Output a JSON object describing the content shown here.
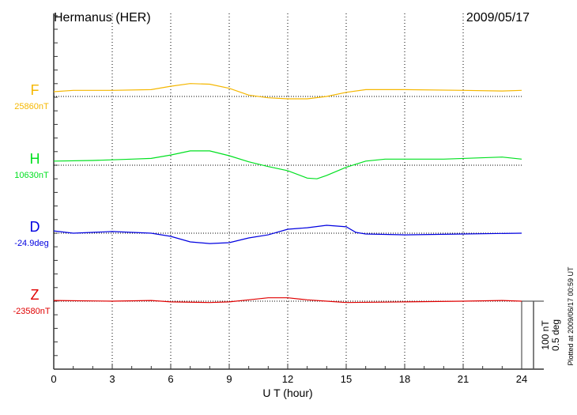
{
  "chart_data": {
    "type": "line",
    "title": "Hermanus (HER)",
    "date": "2009/05/17",
    "xlabel": "U T (hour)",
    "xlim": [
      0,
      24
    ],
    "xticks": [
      "0",
      "3",
      "6",
      "9",
      "12",
      "15",
      "18",
      "21",
      "24"
    ],
    "grid": "vertical dotted every 3 hours",
    "scale_bar": {
      "nT_label": "100 nT",
      "deg_label": "0.5 deg",
      "nT": 100,
      "deg": 0.5
    },
    "footer": "Plotted at 2009/06/17 00:59 UT",
    "series": [
      {
        "name": "F",
        "baseline_label": "25860nT",
        "unit": "nT",
        "color": "#f5b700",
        "x": [
          0,
          1,
          3,
          5,
          6,
          7,
          8,
          9,
          10,
          11,
          12,
          13,
          14,
          15,
          16,
          18,
          21,
          23,
          24
        ],
        "y": [
          7,
          9,
          9,
          10,
          15,
          19,
          18,
          12,
          2,
          -2,
          -3.5,
          -3.5,
          0,
          6,
          10,
          10,
          9,
          8,
          9
        ]
      },
      {
        "name": "H",
        "baseline_label": "10630nT",
        "unit": "nT",
        "color": "#00e020",
        "x": [
          0,
          2,
          4,
          5,
          6,
          7,
          8,
          9,
          10,
          11,
          12,
          13,
          13.5,
          14,
          15,
          16,
          17,
          20,
          23,
          24
        ],
        "y": [
          6,
          7,
          9,
          10,
          15,
          21,
          21,
          14,
          5,
          -2,
          -8,
          -19,
          -20,
          -15,
          -3,
          6,
          9,
          9,
          12,
          9
        ]
      },
      {
        "name": "D",
        "baseline_label": "-24.9deg",
        "unit": "deg",
        "color": "#0000e0",
        "x": [
          0,
          1,
          3,
          5,
          6,
          7,
          8,
          9,
          10,
          11,
          12,
          13,
          14,
          15,
          15.5,
          16,
          18,
          21,
          24
        ],
        "y": [
          0.017,
          0,
          0.012,
          0,
          -0.023,
          -0.064,
          -0.076,
          -0.07,
          -0.035,
          -0.012,
          0.029,
          0.04,
          0.058,
          0.047,
          0.006,
          -0.006,
          -0.012,
          -0.006,
          0
        ]
      },
      {
        "name": "Z",
        "baseline_label": "-23580nT",
        "unit": "nT",
        "color": "#e00000",
        "x": [
          0,
          3,
          5,
          6,
          8,
          9,
          10,
          11,
          12,
          13,
          14,
          15,
          18,
          21,
          23,
          24
        ],
        "y": [
          1,
          0,
          1,
          -1,
          -2,
          -1,
          2,
          5,
          5,
          2,
          0,
          -2,
          -1,
          0,
          1,
          0
        ]
      }
    ]
  }
}
